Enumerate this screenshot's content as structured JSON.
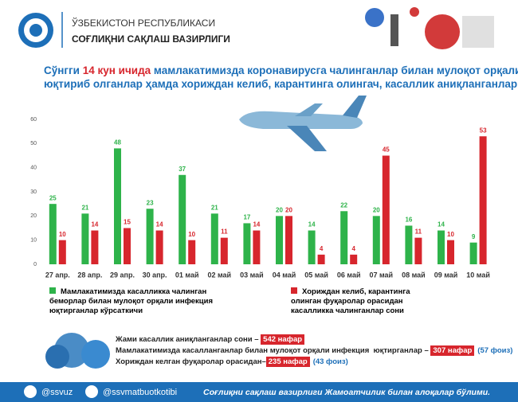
{
  "header": {
    "line1": "ЎЗБЕКИСТОН РЕСПУБЛИКАСИ",
    "line2": "СОҒЛИҚНИ САҚЛАШ ВАЗИРЛИГИ"
  },
  "title_lines": [
    [
      "Сўнгги ",
      "14 кун ичида",
      " мамлакатимизда коронавирусга чалинганлар билан мулоқот орқали инфекция"
    ],
    [
      "юқтириб олганлар ҳамда хориждан келиб, карантинга олингач, касаллик аниқланганлар таҳлили"
    ]
  ],
  "chart_data": {
    "type": "bar",
    "categories": [
      "27 апр.",
      "28 апр.",
      "29 апр.",
      "30 апр.",
      "01 май",
      "02 май",
      "03 май",
      "04 май",
      "05 май",
      "06 май",
      "07 май",
      "08 май",
      "09 май",
      "10 май"
    ],
    "series": [
      {
        "name": "Мамлакатимизда касалликка чалинган беморлар билан мулоқот орқали инфекция юқтирганлар кўрсаткичи",
        "color": "#2eb34a",
        "values": [
          25,
          21,
          48,
          23,
          37,
          21,
          17,
          20,
          14,
          22,
          20,
          16,
          14,
          9
        ]
      },
      {
        "name": "Хориждан келиб, карантинга олинган фуқаролар орасидан касалликка чалинганлар сони",
        "color": "#d7262d",
        "values": [
          10,
          14,
          15,
          14,
          10,
          11,
          14,
          20,
          4,
          4,
          45,
          11,
          10,
          53
        ]
      }
    ],
    "ylim": [
      0,
      60
    ],
    "yticks": [
      0,
      10,
      20,
      30,
      40,
      50,
      60
    ]
  },
  "summary": [
    [
      "Жами касаллик аниқланганлар сони – ",
      "542 нафар",
      ""
    ],
    [
      "Мамлакатимизда касалланганлар билан мулоқот орқали инфекция  юқтирганлар – ",
      "307 нафар",
      "(57 фоиз)"
    ],
    [
      "Хориждан келган фуқаролар орасидан–",
      "235 нафар",
      "(43 фоиз)"
    ]
  ],
  "footer": {
    "handle1": "@ssvuz",
    "handle2": "@ssvmatbuotkotibi",
    "text": "Соғлиқни сақлаш вазирлиги Жамоатчилик билан алоқалар бўлими."
  }
}
